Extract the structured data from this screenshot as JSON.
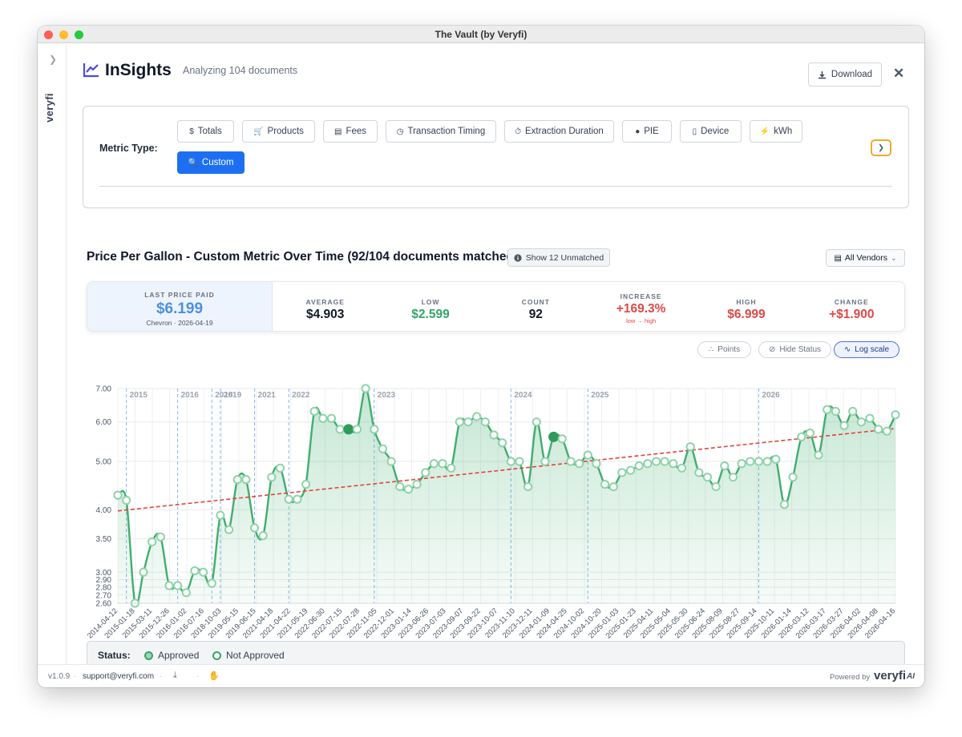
{
  "window": {
    "title": "The Vault (by Veryfi)"
  },
  "sidebar": {
    "expand_icon": "chevron-right-icon",
    "brand": "veryfi"
  },
  "header": {
    "icon": "line-chart-icon",
    "title": "InSights",
    "subtitle": "Analyzing 104 documents",
    "download_label": "Download",
    "close_label": "✕"
  },
  "metric_type": {
    "label": "Metric Type:",
    "options": [
      {
        "label": "Totals",
        "icon": "$"
      },
      {
        "label": "Products",
        "icon": "🛒"
      },
      {
        "label": "Fees",
        "icon": "▤"
      },
      {
        "label": "Transaction Timing",
        "icon": "◷"
      },
      {
        "label": "Extraction Duration",
        "icon": "⏱"
      },
      {
        "label": "PIE",
        "icon": "●"
      },
      {
        "label": "Device",
        "icon": "▯"
      },
      {
        "label": "kWh",
        "icon": "⚡"
      },
      {
        "label": "Custom",
        "icon": "🔍"
      }
    ],
    "selected": "Custom"
  },
  "chart_header": {
    "title": "Price Per Gallon - Custom Metric Over Time (92/104 documents matched)",
    "unmatched_label": "Show 12 Unmatched",
    "vendor_filter": "All Vendors"
  },
  "stats": {
    "last_price": {
      "label": "LAST PRICE PAID",
      "value": "$6.199",
      "sub": "Chevron · 2026-04-19"
    },
    "average": {
      "label": "AVERAGE",
      "value": "$4.903"
    },
    "low": {
      "label": "LOW",
      "value": "$2.599"
    },
    "count": {
      "label": "COUNT",
      "value": "92"
    },
    "increase": {
      "label": "INCREASE",
      "value": "+169.3%",
      "sub": "low → high"
    },
    "high": {
      "label": "HIGH",
      "value": "$6.999"
    },
    "change": {
      "label": "CHANGE",
      "value": "+$1.900"
    }
  },
  "chart_controls": {
    "points": "Points",
    "hide_status": "Hide Status",
    "log_scale": "Log scale"
  },
  "status_legend": {
    "label": "Status:",
    "approved": "Approved",
    "not_approved": "Not Approved"
  },
  "footer": {
    "version": "v1.0.9",
    "email": "support@veryfi.com",
    "powered_by": "Powered by",
    "brand": "veryfi",
    "ai": "AI"
  },
  "colors": {
    "accent": "#1d6ff2",
    "line": "#3fae6e",
    "trend": "#e0443e",
    "year_marker": "#8ab4e8"
  },
  "chart_data": {
    "type": "line",
    "title": "",
    "xlabel": "",
    "ylabel": "",
    "y_scale": "log",
    "ylim": [
      2.6,
      7.0
    ],
    "y_ticks": [
      2.6,
      2.7,
      2.8,
      2.9,
      3.0,
      3.5,
      4.0,
      5.0,
      6.0,
      7.0
    ],
    "y_tick_labels": [
      "2.60",
      "2.70",
      "2.80",
      "2.90",
      "3.00",
      "3.50",
      "4.00",
      "5.00",
      "6.00",
      "7.00"
    ],
    "year_markers": [
      {
        "label": "2015",
        "index": 1
      },
      {
        "label": "2016",
        "index": 7
      },
      {
        "label": "2018",
        "index": 11
      },
      {
        "label": "2019",
        "index": 12
      },
      {
        "label": "2021",
        "index": 16
      },
      {
        "label": "2022",
        "index": 20
      },
      {
        "label": "2023",
        "index": 30
      },
      {
        "label": "2024",
        "index": 46
      },
      {
        "label": "2025",
        "index": 55
      },
      {
        "label": "2026",
        "index": 75
      }
    ],
    "x_tick_labels": [
      "2014-04-12",
      "2015-01-18",
      "2015-03-11",
      "2015-12-26",
      "2016-01-02",
      "2016-07-16",
      "2018-10-03",
      "2019-05-15",
      "2019-06-15",
      "2021-04-18",
      "2021-04-22",
      "2021-05-19",
      "2022-06-30",
      "2022-07-15",
      "2022-07-28",
      "2022-11-05",
      "2022-12-01",
      "2023-01-14",
      "2023-06-26",
      "2023-07-03",
      "2023-09-07",
      "2023-09-22",
      "2023-10-07",
      "2023-11-10",
      "2023-12-11",
      "2024-01-09",
      "2024-04-25",
      "2024-10-02",
      "2024-10-20",
      "2025-01-03",
      "2025-01-23",
      "2025-04-11",
      "2025-05-04",
      "2025-05-30",
      "2025-06-24",
      "2025-08-09",
      "2025-08-27",
      "2025-09-14",
      "2025-10-11",
      "2026-01-14",
      "2026-03-12",
      "2026-03-17",
      "2026-03-27",
      "2026-04-02",
      "2026-04-08",
      "2026-04-16"
    ],
    "values": [
      4.28,
      4.18,
      2.6,
      3.0,
      3.45,
      3.53,
      2.82,
      2.82,
      2.73,
      3.02,
      3.0,
      2.85,
      3.9,
      3.65,
      4.6,
      4.6,
      3.68,
      3.55,
      4.65,
      4.85,
      4.2,
      4.2,
      4.5,
      6.3,
      6.1,
      6.1,
      5.8,
      5.8,
      5.8,
      7.0,
      5.8,
      5.3,
      5.0,
      4.45,
      4.4,
      4.5,
      4.75,
      4.95,
      4.95,
      4.85,
      6.0,
      6.0,
      6.15,
      6.0,
      5.65,
      5.45,
      5.0,
      5.0,
      4.45,
      6.0,
      5.0,
      5.6,
      5.55,
      5.0,
      4.95,
      5.15,
      4.95,
      4.5,
      4.45,
      4.75,
      4.8,
      4.9,
      4.95,
      5.0,
      5.0,
      4.95,
      4.85,
      5.35,
      4.75,
      4.65,
      4.45,
      4.9,
      4.65,
      4.95,
      5.0,
      5.0,
      5.0,
      5.05,
      4.1,
      4.65,
      5.6,
      5.7,
      5.15,
      6.35,
      6.3,
      5.9,
      6.3,
      6.0,
      6.1,
      5.8,
      5.75,
      6.2
    ],
    "status": {
      "approved_indices": [
        27,
        51
      ],
      "default": "not_approved"
    },
    "trend_line": {
      "start": 3.98,
      "end": 5.82
    }
  }
}
